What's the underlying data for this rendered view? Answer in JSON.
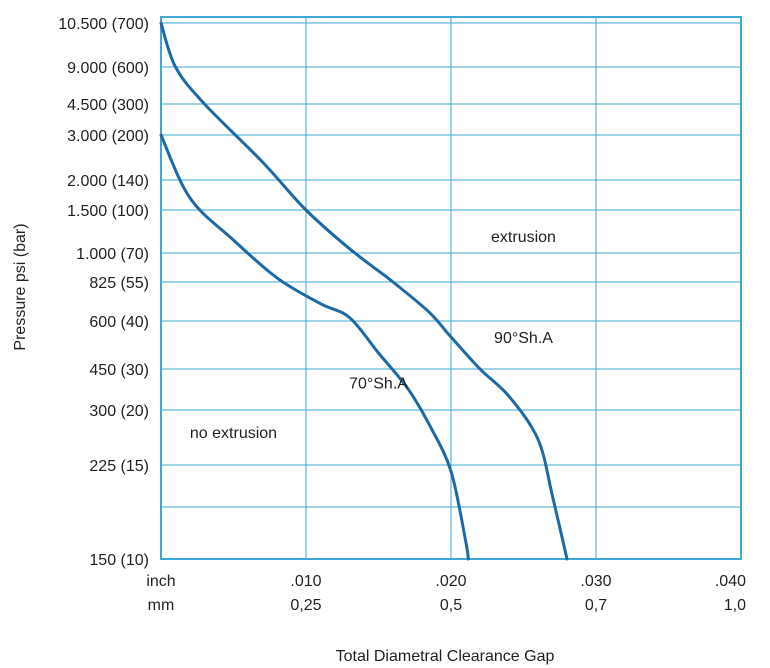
{
  "chart_data": {
    "type": "line",
    "title": "",
    "xlabel": "Total Diametral Clearance Gap",
    "ylabel": "Pressure psi (bar)",
    "x_unit_labels": [
      "inch",
      "mm"
    ],
    "x_ticks": [
      {
        "inch": ".010",
        "mm": "0,25",
        "value": 0.01
      },
      {
        "inch": ".020",
        "mm": "0,5",
        "value": 0.02
      },
      {
        "inch": ".030",
        "mm": "0,7",
        "value": 0.03
      },
      {
        "inch": ".040",
        "mm": "1,0",
        "value": 0.04
      }
    ],
    "xlim": [
      0,
      0.04
    ],
    "y_ticks": [
      {
        "label": "10.500 (700)",
        "value": 10500
      },
      {
        "label": "9.000 (600)",
        "value": 9000
      },
      {
        "label": "4.500 (300)",
        "value": 4500
      },
      {
        "label": "3.000 (200)",
        "value": 3000
      },
      {
        "label": "2.000 (140)",
        "value": 2000
      },
      {
        "label": "1.500 (100)",
        "value": 1500
      },
      {
        "label": "1.000 (70)",
        "value": 1000
      },
      {
        "label": "825 (55)",
        "value": 825
      },
      {
        "label": "600 (40)",
        "value": 600
      },
      {
        "label": "450 (30)",
        "value": 450
      },
      {
        "label": "300 (20)",
        "value": 300
      },
      {
        "label": "225 (15)",
        "value": 225
      },
      {
        "label": "150 (10)",
        "value": 150
      }
    ],
    "ylim": [
      150,
      10500
    ],
    "y_scale": "nonlinear (tick positions as printed)",
    "grid": true,
    "series": [
      {
        "name": "90°Sh.A",
        "color": "#1b6aa5",
        "points": [
          [
            0.0,
            10500
          ],
          [
            0.001,
            9000
          ],
          [
            0.003,
            4500
          ],
          [
            0.007,
            2400
          ],
          [
            0.01,
            1500
          ],
          [
            0.013,
            1050
          ],
          [
            0.016,
            825
          ],
          [
            0.0185,
            650
          ],
          [
            0.02,
            550
          ],
          [
            0.022,
            450
          ],
          [
            0.024,
            350
          ],
          [
            0.026,
            260
          ],
          [
            0.027,
            200
          ],
          [
            0.028,
            150
          ]
        ]
      },
      {
        "name": "70°Sh.A",
        "color": "#1b6aa5",
        "points": [
          [
            0.0,
            3000
          ],
          [
            0.002,
            1700
          ],
          [
            0.005,
            1150
          ],
          [
            0.008,
            850
          ],
          [
            0.011,
            700
          ],
          [
            0.013,
            620
          ],
          [
            0.015,
            500
          ],
          [
            0.017,
            380
          ],
          [
            0.0185,
            280
          ],
          [
            0.02,
            220
          ],
          [
            0.021,
            165
          ],
          [
            0.0212,
            150
          ]
        ]
      }
    ],
    "annotations": [
      {
        "text": "extrusion",
        "x": 0.025,
        "y": 1200
      },
      {
        "text": "90°Sh.A",
        "x": 0.025,
        "y": 550
      },
      {
        "text": "70°Sh.A",
        "x": 0.015,
        "y": 400
      },
      {
        "text": "no extrusion",
        "x": 0.005,
        "y": 270
      }
    ],
    "colors": {
      "axis": "#3fa7d6",
      "grid": "#3fa7d6",
      "line": "#1b6aa5",
      "text": "#231f20"
    }
  }
}
